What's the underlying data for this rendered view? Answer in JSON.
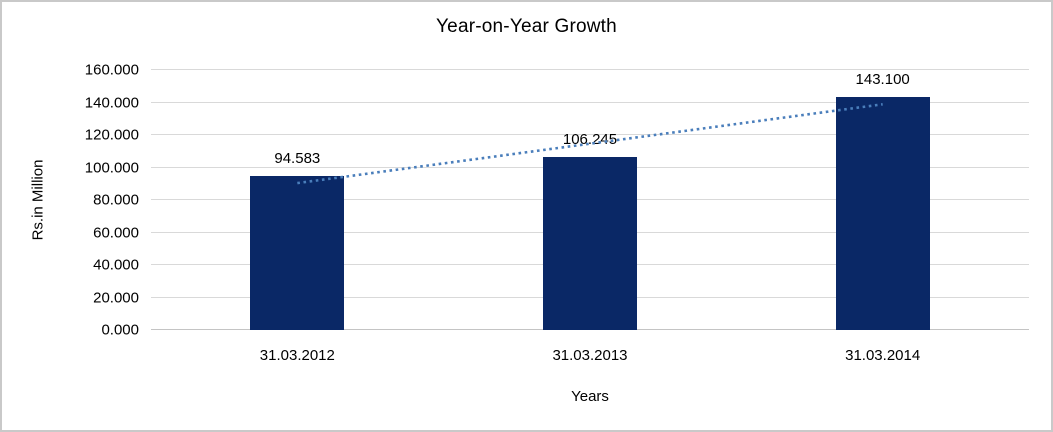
{
  "chart_data": {
    "type": "bar",
    "title": "Year-on-Year Growth",
    "xlabel": "Years",
    "ylabel": "Rs.in Million",
    "categories": [
      "31.03.2012",
      "31.03.2013",
      "31.03.2014"
    ],
    "values": [
      94.583,
      106.245,
      143.1
    ],
    "value_labels": [
      "94.583",
      "106.245",
      "143.100"
    ],
    "ylim": [
      0,
      160
    ],
    "ytick_step": 20,
    "ytick_labels": [
      "0.000",
      "20.000",
      "40.000",
      "60.000",
      "80.000",
      "100.000",
      "120.000",
      "140.000",
      "160.000"
    ],
    "grid": true,
    "legend": "none",
    "colors": {
      "bar": "#0a2866",
      "trendline": "#4a7ebb",
      "gridline": "#d9d9d9",
      "axis_line": "#c4c4c4",
      "frame_border": "#c9c9c9",
      "text": "#000000",
      "background": "#ffffff"
    },
    "trendline": {
      "type": "linear",
      "style": "dotted",
      "start_value": 90.4,
      "end_value": 138.9
    }
  }
}
